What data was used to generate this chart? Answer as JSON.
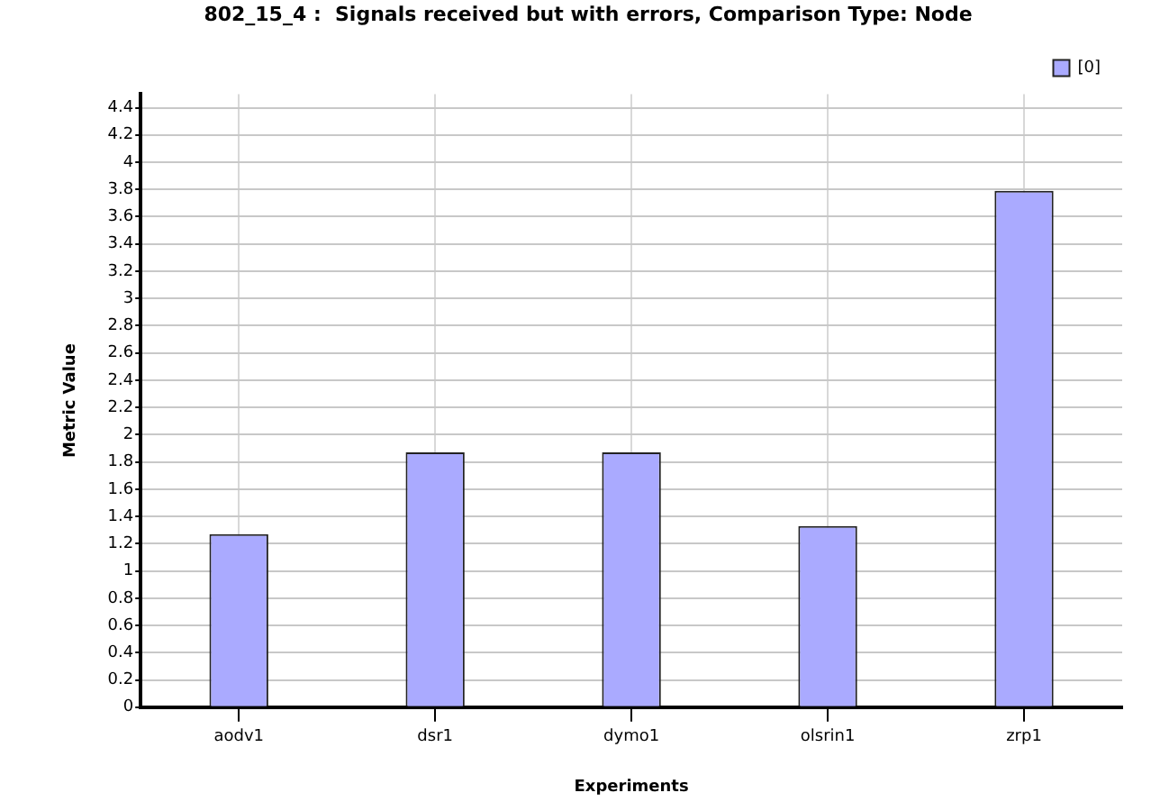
{
  "chart_data": {
    "type": "bar",
    "title": "802_15_4 :  Signals received but with errors, Comparison Type: Node",
    "xlabel": "Experiments",
    "ylabel": "Metric Value",
    "categories": [
      "aodv1",
      "dsr1",
      "dymo1",
      "olsrin1",
      "zrp1"
    ],
    "series": [
      {
        "name": "[0]",
        "color": "#aaaaff",
        "values": [
          1.27,
          1.87,
          1.87,
          1.33,
          3.79
        ]
      }
    ],
    "ylim": [
      0,
      4.5
    ],
    "yticks": [
      0,
      0.2,
      0.4,
      0.6,
      0.8,
      1,
      1.2,
      1.4,
      1.6,
      1.8,
      2,
      2.2,
      2.4,
      2.6,
      2.8,
      3,
      3.2,
      3.4,
      3.6,
      3.8,
      4,
      4.2,
      4.4
    ],
    "grid": true,
    "legend": "top right"
  }
}
